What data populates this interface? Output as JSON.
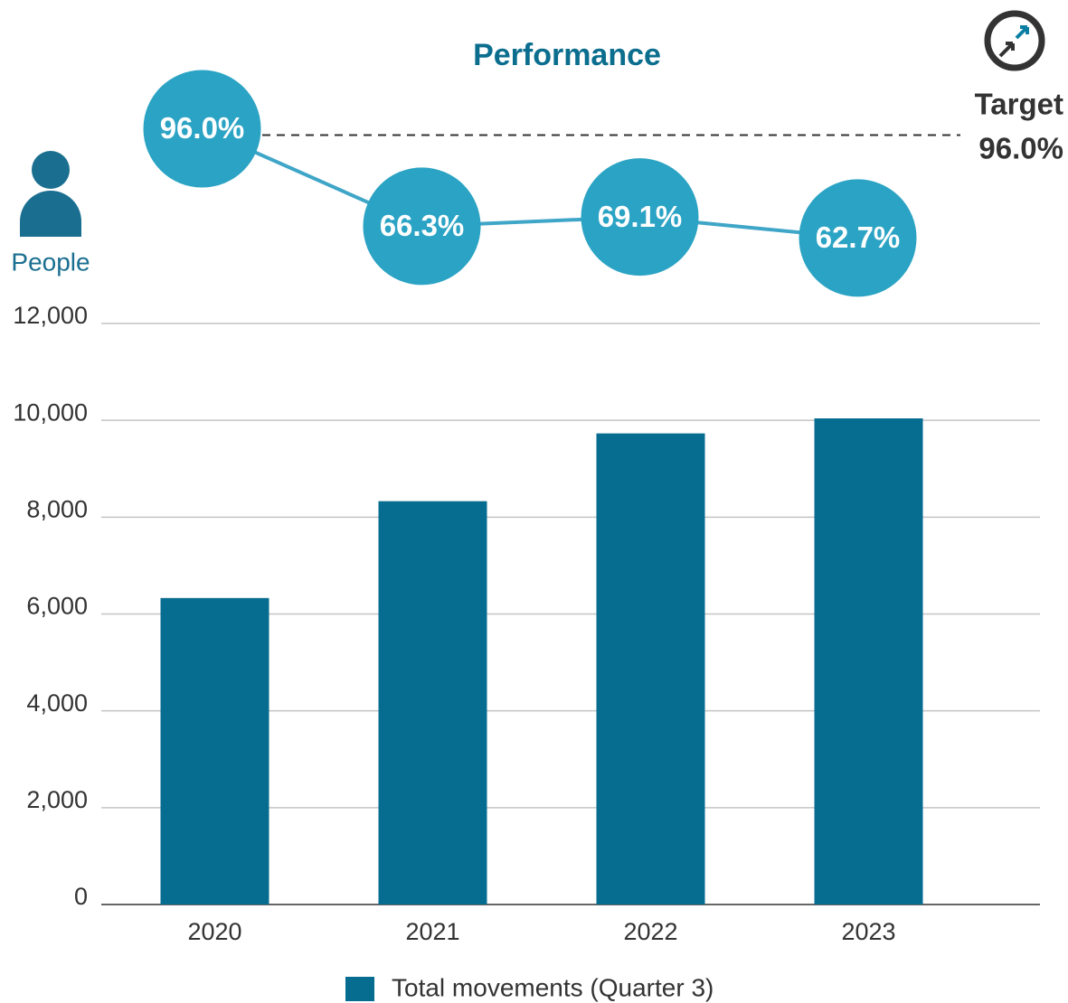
{
  "chart_data": {
    "type": "bar",
    "title": "Performance",
    "y_label": "People",
    "categories": [
      "2020",
      "2021",
      "2022",
      "2023"
    ],
    "series": [
      {
        "name": "Total movements (Quarter 3)",
        "color": "#076d90",
        "values": [
          6330,
          8330,
          9730,
          10040
        ]
      },
      {
        "type": "line",
        "axis": "y2",
        "color": "#2ba3c4",
        "line_color": "#3fa6c8",
        "values": [
          96.0,
          66.3,
          69.1,
          62.7
        ],
        "value_labels": [
          "96.0%",
          "66.3%",
          "69.1%",
          "62.7%"
        ]
      }
    ],
    "target": {
      "label": "Target",
      "value": 96.0,
      "value_label": "96.0%"
    },
    "ylim": [
      0,
      12000
    ],
    "yticks": [
      0,
      {
        "value": 2000,
        "label": "2,000"
      },
      {
        "value": 4000,
        "label": "4,000"
      },
      {
        "value": 6000,
        "label": "6,000"
      },
      {
        "value": 8000,
        "label": "8,000"
      },
      {
        "value": 10000,
        "label": "10,000"
      },
      {
        "value": 12000,
        "label": "12,000"
      }
    ],
    "y2lim": [
      50,
      100
    ],
    "grid": true,
    "legend": "bottom"
  }
}
